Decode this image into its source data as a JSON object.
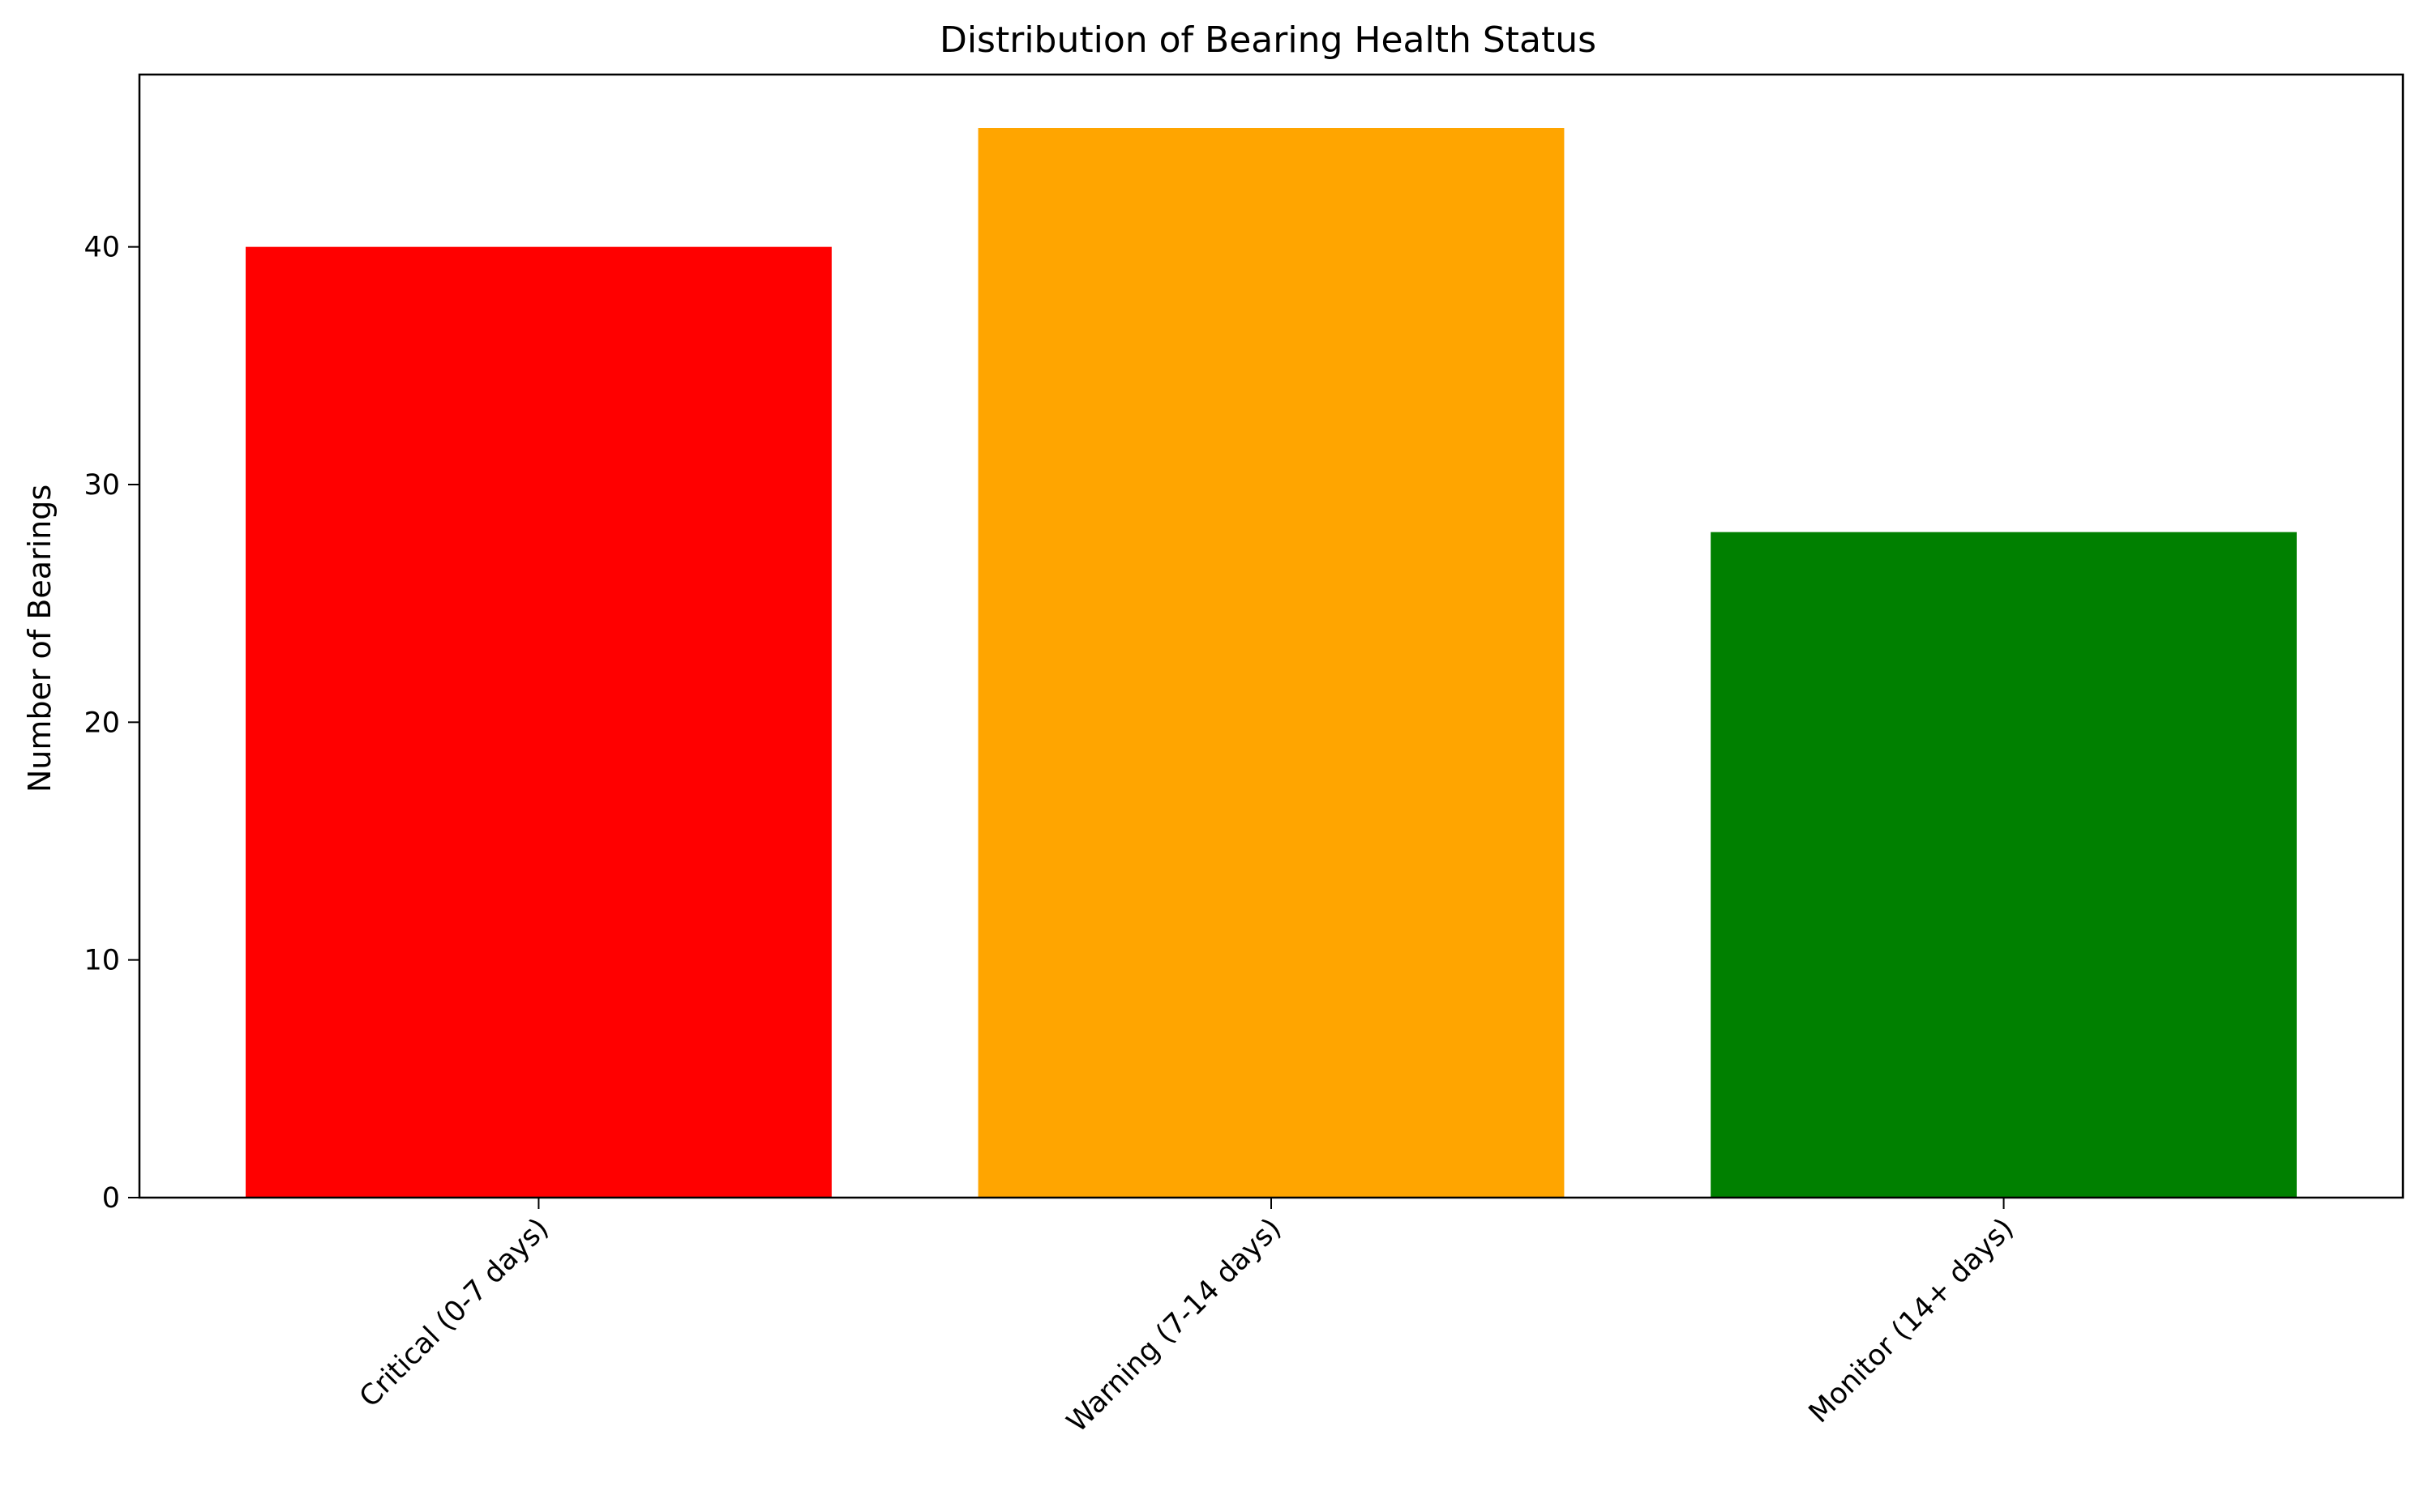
{
  "chart_data": {
    "type": "bar",
    "title": "Distribution of Bearing Health Status",
    "xlabel": "",
    "ylabel": "Number of Bearings",
    "categories": [
      "Critical (0-7 days)",
      "Warning (7-14 days)",
      "Monitor (14+ days)"
    ],
    "values": [
      40,
      45,
      28
    ],
    "colors": [
      "#ff0000",
      "#ffa500",
      "#008000"
    ],
    "ylim": [
      0,
      47.25
    ],
    "yticks": [
      0,
      10,
      20,
      30,
      40
    ],
    "grid": false,
    "legend": "none"
  }
}
